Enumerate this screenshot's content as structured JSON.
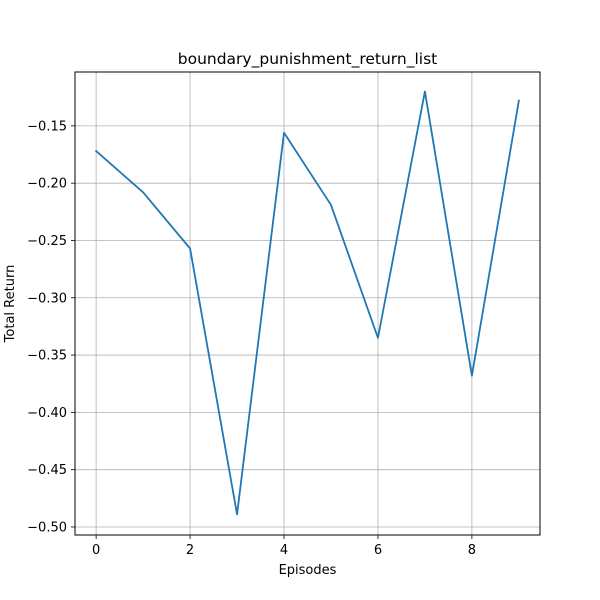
{
  "chart_data": {
    "type": "line",
    "title": "boundary_punishment_return_list",
    "xlabel": "Episodes",
    "ylabel": "Total Return",
    "xlim": [
      -0.45,
      9.45
    ],
    "ylim": [
      -0.507,
      -0.103
    ],
    "xticks": [
      0,
      2,
      4,
      6,
      8
    ],
    "xtick_labels": [
      "0",
      "2",
      "4",
      "6",
      "8"
    ],
    "yticks": [
      -0.5,
      -0.45,
      -0.4,
      -0.35,
      -0.3,
      -0.25,
      -0.2,
      -0.15
    ],
    "ytick_labels": [
      "−0.50",
      "−0.45",
      "−0.40",
      "−0.35",
      "−0.30",
      "−0.25",
      "−0.20",
      "−0.15"
    ],
    "grid": true,
    "series": [
      {
        "color": "#1f77b4",
        "x": [
          0,
          1,
          2,
          3,
          4,
          5,
          6,
          7,
          8,
          9
        ],
        "values": [
          -0.172,
          -0.208,
          -0.257,
          -0.489,
          -0.156,
          -0.219,
          -0.335,
          -0.12,
          -0.368,
          -0.128
        ]
      }
    ]
  }
}
